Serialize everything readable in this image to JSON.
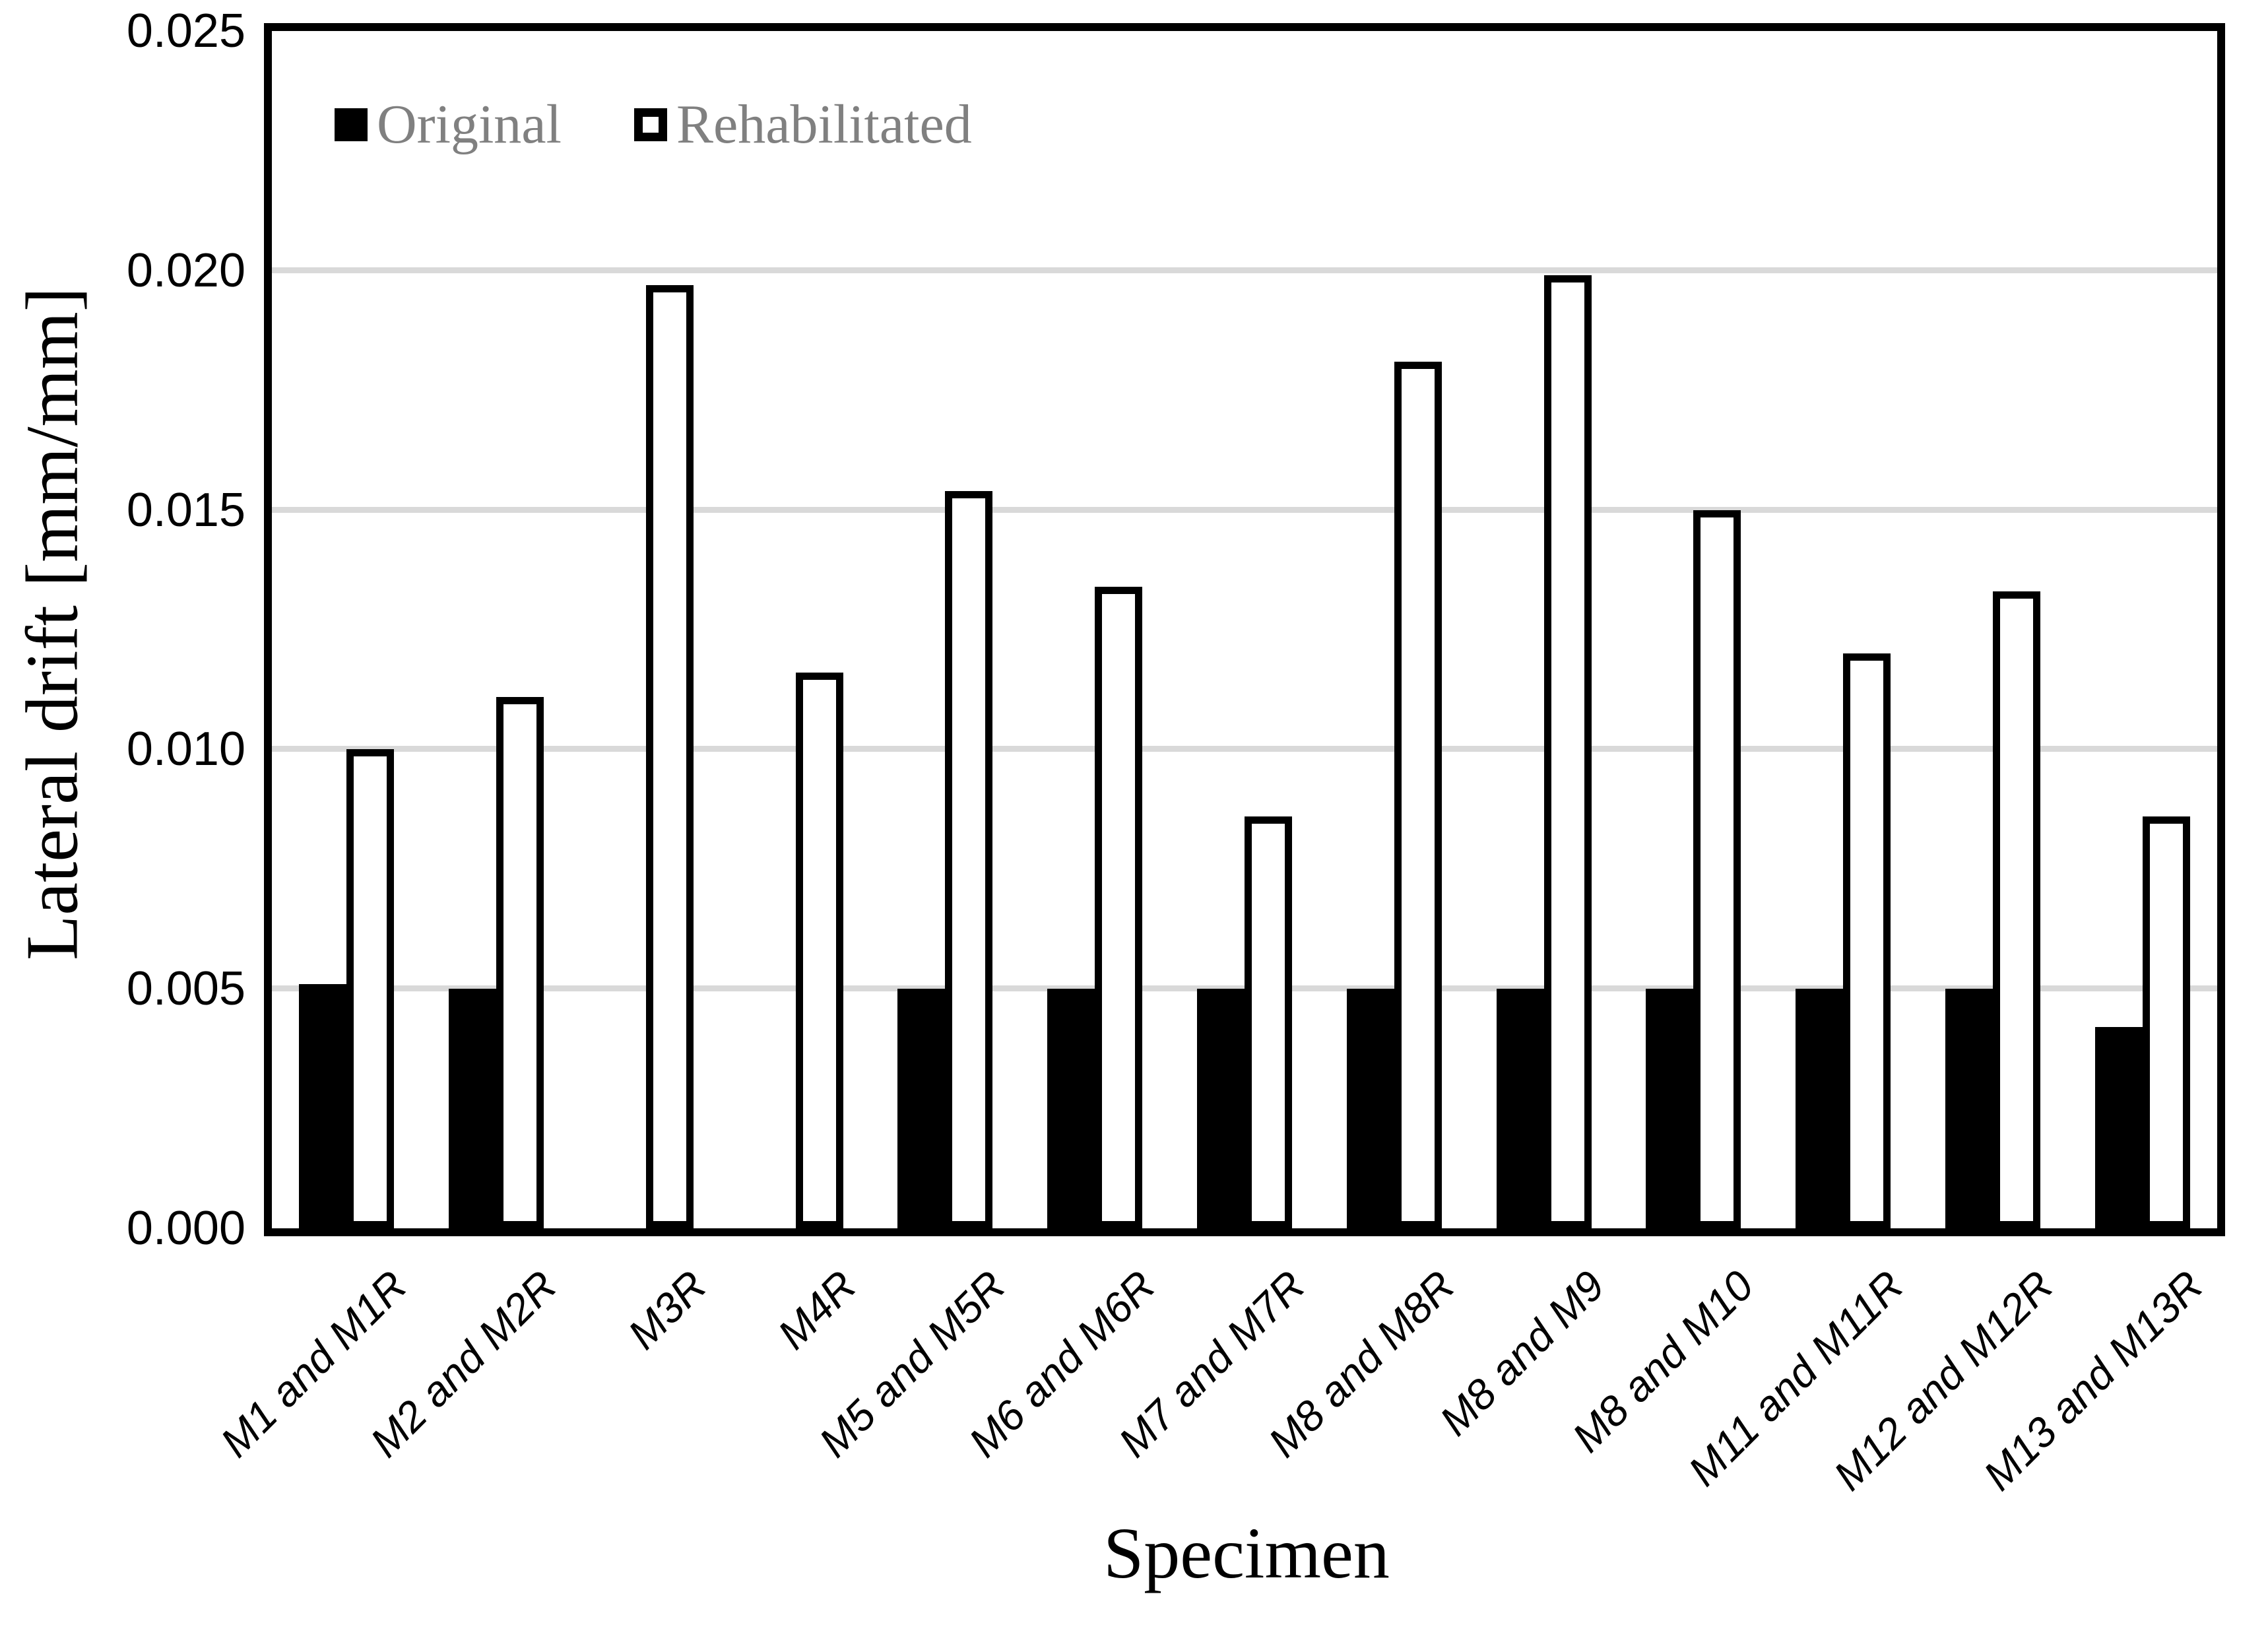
{
  "chart_data": {
    "type": "bar",
    "title": "",
    "xlabel": "Specimen",
    "ylabel": "Lateral drift [mm/mm]",
    "ylim": [
      0,
      0.025
    ],
    "ytick_step": 0.005,
    "ytick_values": [
      0,
      0.005,
      0.01,
      0.015,
      0.02,
      0.025
    ],
    "ytick_labels": [
      "0.000",
      "0.005",
      "0.010",
      "0.015",
      "0.020",
      "0.025"
    ],
    "grid": true,
    "legend_position": "top-left-inside",
    "categories": [
      "M1 and M1R",
      "M2 and M2R",
      "M3R",
      "M4R",
      "M5 and M5R",
      "M6 and M6R",
      "M7 and M7R",
      "M8 and M8R",
      "M8 and M9",
      "M8 and M10",
      "M11 and M11R",
      "M12 and M12R",
      "M13 and M13R"
    ],
    "series": [
      {
        "name": "Original",
        "style": "solid-black",
        "values": [
          0.0051,
          0.005,
          null,
          null,
          0.005,
          0.005,
          0.005,
          0.005,
          0.005,
          0.005,
          0.005,
          0.005,
          0.0042
        ]
      },
      {
        "name": "Rehabilitated",
        "style": "white-black-outline",
        "values": [
          0.01,
          0.0111,
          0.0197,
          0.0116,
          0.0154,
          0.0134,
          0.0086,
          0.0181,
          0.0199,
          0.015,
          0.012,
          0.0133,
          0.0086
        ]
      }
    ],
    "colors": {
      "original_fill": "#000000",
      "rehabilitated_fill": "#ffffff",
      "outline": "#000000",
      "gridline": "#d9d9d9",
      "legend_text": "#808080",
      "axis_text": "#000000"
    }
  }
}
